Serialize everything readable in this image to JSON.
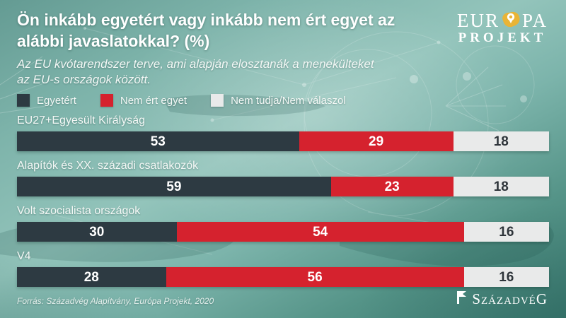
{
  "header": {
    "title_lines": [
      "Ön inkább egyetért vagy inkább nem ért egyet az",
      "alábbi javaslatokkal? (%)"
    ],
    "subtitle_lines": [
      "Az EU kvótarendszer terve, ami alapján elosztanák a menekülteket",
      "az EU-s országok között."
    ]
  },
  "logo": {
    "part1": "EUR",
    "part2": "PA",
    "line2": "PROJEKT",
    "map_color": "#e9b436"
  },
  "legend": {
    "items": [
      {
        "label": "Egyetért",
        "color": "#2d3a42",
        "value_color": "#ffffff"
      },
      {
        "label": "Nem ért egyet",
        "color": "#d5222e",
        "value_color": "#ffffff"
      },
      {
        "label": "Nem tudja/Nem válaszol",
        "color": "#e9eaea",
        "value_color": "#2e343a"
      }
    ]
  },
  "chart_data": {
    "type": "bar",
    "orientation": "horizontal-stacked",
    "title": "Ön inkább egyetért vagy inkább nem ért egyet az alábbi javaslatokkal? (%)",
    "subtitle": "Az EU kvótarendszer terve, ami alapján elosztanák a menekülteket az EU-s országok között.",
    "categories": [
      "EU27+Egyesült Királyság",
      "Alapítók és XX. századi csatlakozók",
      "Volt szocialista országok",
      "V4"
    ],
    "series": [
      {
        "name": "Egyetért",
        "values": [
          53,
          59,
          30,
          28
        ]
      },
      {
        "name": "Nem ért egyet",
        "values": [
          29,
          23,
          54,
          56
        ]
      },
      {
        "name": "Nem tudja/Nem válaszol",
        "values": [
          18,
          18,
          16,
          16
        ]
      }
    ],
    "xlim": [
      0,
      100
    ],
    "unit": "%",
    "grid": false,
    "legend_position": "top"
  },
  "footer": {
    "source": "Forrás: Századvég Alapítvány, Európa Projekt, 2020",
    "brand": "SzázadvéG"
  }
}
